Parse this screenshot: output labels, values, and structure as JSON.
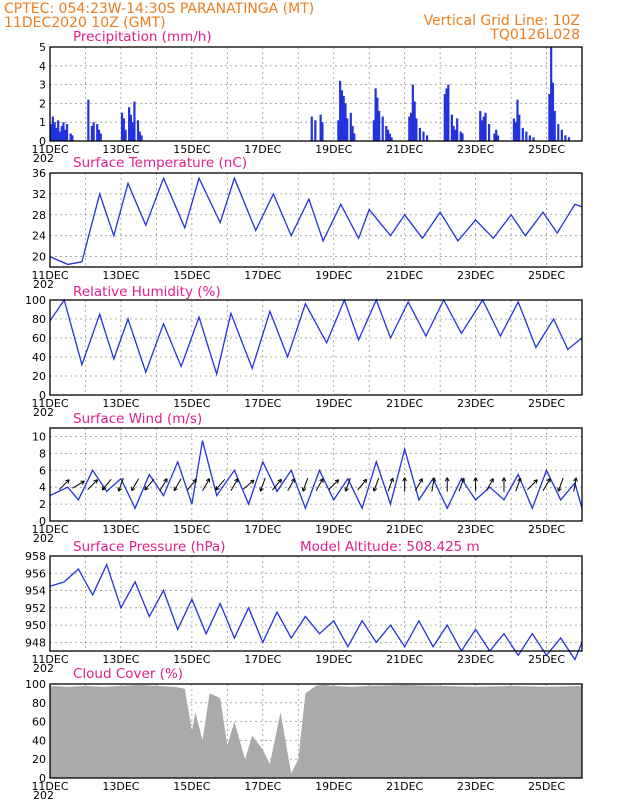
{
  "header": {
    "line1_left": "CPTEC:   054:23W-14:30S   PARANATINGA (MT)",
    "line2_left": "11DEC2020 10Z (GMT)",
    "line1_right": "Vertical Grid Line: 10Z",
    "line2_right": "TQ0126L028"
  },
  "colors": {
    "header": "#ee7d1f",
    "title": "#e0208a",
    "line": "#2233dd",
    "bars": "#2233dd",
    "cloud": "#aaaaaa"
  },
  "x_tick_labels": [
    "11DEC",
    "13DEC",
    "15DEC",
    "17DEC",
    "19DEC",
    "21DEC",
    "23DEC",
    "25DEC"
  ],
  "year_fragment": "202",
  "chart_data": [
    {
      "type": "bar",
      "title": "Precipitation (mm/h)",
      "ylim": [
        0,
        5
      ],
      "yticks": [
        0,
        1,
        2,
        3,
        4,
        5
      ],
      "x_days": [
        0.0,
        0.05,
        0.1,
        0.15,
        0.2,
        0.25,
        0.3,
        0.35,
        0.4,
        0.45,
        0.55,
        0.6,
        1.05,
        1.15,
        1.2,
        1.3,
        1.35,
        1.4,
        2.0,
        2.05,
        2.1,
        2.2,
        2.25,
        2.3,
        2.35,
        2.45,
        2.5,
        2.55,
        7.35,
        7.45,
        7.6,
        7.65,
        8.1,
        8.15,
        8.2,
        8.25,
        8.3,
        8.35,
        8.45,
        8.5,
        8.55,
        9.1,
        9.15,
        9.2,
        9.25,
        9.35,
        9.45,
        9.5,
        9.55,
        9.6,
        10.1,
        10.15,
        10.2,
        10.25,
        10.3,
        10.4,
        10.5,
        10.6,
        11.1,
        11.15,
        11.2,
        11.3,
        11.35,
        11.4,
        11.45,
        11.55,
        11.6,
        12.1,
        12.15,
        12.2,
        12.25,
        12.35,
        12.5,
        12.55,
        12.6,
        13.05,
        13.1,
        13.15,
        13.2,
        13.3,
        13.4,
        13.5,
        13.6,
        14.05,
        14.1,
        14.15,
        14.2,
        14.3,
        14.4,
        14.5,
        14.6
      ],
      "values": [
        0.9,
        1.3,
        1.0,
        0.7,
        1.1,
        0.5,
        0.8,
        1.0,
        0.6,
        0.9,
        0.4,
        0.3,
        2.2,
        0.8,
        1.0,
        0.9,
        0.6,
        0.4,
        1.5,
        1.2,
        0.6,
        1.8,
        1.4,
        1.0,
        2.1,
        1.1,
        0.5,
        0.3,
        1.3,
        1.1,
        1.4,
        1.0,
        1.1,
        3.2,
        2.7,
        2.4,
        2.0,
        1.2,
        1.5,
        0.8,
        0.4,
        1.1,
        2.8,
        2.3,
        1.6,
        1.3,
        0.8,
        0.6,
        0.4,
        0.2,
        1.3,
        1.5,
        3.0,
        2.1,
        1.2,
        0.7,
        0.5,
        0.3,
        2.5,
        2.8,
        3.0,
        1.4,
        0.8,
        0.6,
        1.2,
        0.5,
        0.4,
        1.6,
        1.1,
        1.3,
        1.5,
        0.9,
        0.4,
        0.6,
        0.3,
        1.2,
        1.0,
        2.2,
        1.4,
        0.7,
        0.5,
        0.3,
        0.2,
        2.5,
        5.0,
        3.1,
        1.6,
        0.9,
        0.6,
        0.3,
        0.2
      ]
    },
    {
      "type": "line",
      "title": "Surface Temperature (nC)",
      "ylim": [
        18,
        36
      ],
      "yticks": [
        20,
        24,
        28,
        32,
        36
      ],
      "series": [
        {
          "name": "",
          "x_days": [
            0.0,
            0.5,
            0.9,
            1.4,
            1.8,
            2.2,
            2.7,
            3.2,
            3.8,
            4.2,
            4.8,
            5.2,
            5.8,
            6.3,
            6.8,
            7.3,
            7.7,
            8.2,
            8.7,
            9.0,
            9.6,
            10.0,
            10.5,
            11.0,
            11.5,
            12.0,
            12.5,
            13.0,
            13.4,
            13.9,
            14.3,
            14.8,
            15.0
          ],
          "values": [
            20.0,
            18.5,
            19.0,
            32.0,
            24.0,
            34.0,
            26.0,
            35.0,
            25.5,
            35.0,
            26.5,
            35.0,
            25.0,
            32.0,
            24.0,
            31.0,
            23.0,
            30.0,
            23.5,
            29.0,
            24.0,
            28.0,
            23.5,
            28.5,
            23.0,
            27.0,
            23.5,
            28.0,
            24.0,
            28.5,
            24.5,
            30.0,
            29.5
          ]
        }
      ]
    },
    {
      "type": "line",
      "title": "Relative Humidity (%)",
      "ylim": [
        0,
        100
      ],
      "yticks": [
        0,
        20,
        40,
        60,
        80,
        100
      ],
      "series": [
        {
          "name": "",
          "x_days": [
            0.0,
            0.4,
            0.9,
            1.4,
            1.8,
            2.2,
            2.7,
            3.2,
            3.7,
            4.2,
            4.7,
            5.1,
            5.7,
            6.2,
            6.7,
            7.2,
            7.8,
            8.3,
            8.7,
            9.2,
            9.6,
            10.1,
            10.6,
            11.1,
            11.6,
            12.2,
            12.7,
            13.2,
            13.7,
            14.2,
            14.6,
            15.0
          ],
          "values": [
            78,
            100,
            32,
            85,
            38,
            80,
            24,
            75,
            30,
            82,
            22,
            86,
            28,
            88,
            40,
            96,
            55,
            100,
            58,
            100,
            60,
            98,
            62,
            100,
            65,
            100,
            62,
            98,
            50,
            80,
            48,
            60
          ]
        }
      ]
    },
    {
      "type": "line",
      "title": "Surface Wind (m/s)",
      "ylim": [
        0,
        11
      ],
      "yticks": [
        0,
        2,
        4,
        6,
        8,
        10
      ],
      "series": [
        {
          "name": "",
          "x_days": [
            0.0,
            0.5,
            0.8,
            1.2,
            1.6,
            2.0,
            2.4,
            2.8,
            3.2,
            3.6,
            4.0,
            4.3,
            4.7,
            5.2,
            5.6,
            6.0,
            6.4,
            6.8,
            7.2,
            7.6,
            8.0,
            8.4,
            8.8,
            9.2,
            9.6,
            10.0,
            10.4,
            10.8,
            11.2,
            11.6,
            12.0,
            12.4,
            12.8,
            13.2,
            13.6,
            14.0,
            14.4,
            14.8,
            15.0
          ],
          "values": [
            3.0,
            4.0,
            2.5,
            6.0,
            3.5,
            5.0,
            1.5,
            5.5,
            3.0,
            7.0,
            2.0,
            9.5,
            3.0,
            6.0,
            2.0,
            7.0,
            3.5,
            6.0,
            1.5,
            6.0,
            2.5,
            5.0,
            1.5,
            7.0,
            2.0,
            8.5,
            2.5,
            5.0,
            1.5,
            5.0,
            2.5,
            4.0,
            2.5,
            5.5,
            1.5,
            6.0,
            2.5,
            4.5,
            1.5
          ]
        }
      ],
      "wind_barbs": {
        "x_days": [
          0.4,
          0.8,
          1.2,
          1.6,
          2.0,
          2.4,
          2.8,
          3.2,
          3.6,
          4.0,
          4.4,
          4.8,
          5.2,
          5.6,
          6.0,
          6.4,
          6.8,
          7.2,
          7.6,
          8.0,
          8.4,
          8.8,
          9.2,
          9.6,
          10.0,
          10.4,
          10.8,
          11.2,
          11.6,
          12.0,
          12.4,
          12.8,
          13.2,
          13.6,
          14.0,
          14.4,
          14.8
        ],
        "direction_deg": [
          45,
          60,
          45,
          220,
          200,
          210,
          220,
          30,
          210,
          40,
          30,
          220,
          30,
          50,
          200,
          40,
          30,
          200,
          30,
          45,
          200,
          40,
          200,
          20,
          0,
          30,
          10,
          0,
          20,
          0,
          30,
          0,
          20,
          45,
          30,
          200,
          10
        ]
      }
    },
    {
      "type": "line",
      "title": "Surface Pressure (hPa)",
      "annotation": "Model Altitude: 508.425  m",
      "ylim": [
        947,
        958
      ],
      "yticks": [
        948,
        950,
        952,
        954,
        956,
        958
      ],
      "series": [
        {
          "name": "",
          "x_days": [
            0.0,
            0.4,
            0.8,
            1.2,
            1.6,
            2.0,
            2.4,
            2.8,
            3.2,
            3.6,
            4.0,
            4.4,
            4.8,
            5.2,
            5.6,
            6.0,
            6.4,
            6.8,
            7.2,
            7.6,
            8.0,
            8.4,
            8.8,
            9.2,
            9.6,
            10.0,
            10.4,
            10.8,
            11.2,
            11.6,
            12.0,
            12.4,
            12.8,
            13.2,
            13.6,
            14.0,
            14.4,
            14.8,
            15.0
          ],
          "values": [
            954.5,
            955.0,
            956.5,
            953.5,
            957.0,
            952.0,
            955.0,
            951.0,
            954.0,
            949.5,
            953.0,
            949.0,
            952.5,
            948.5,
            952.0,
            948.0,
            951.5,
            948.5,
            951.0,
            949.0,
            950.5,
            947.5,
            950.5,
            948.0,
            950.0,
            947.5,
            950.5,
            947.5,
            950.0,
            947.0,
            949.5,
            947.0,
            949.0,
            946.5,
            949.0,
            946.5,
            948.5,
            946.0,
            948.0
          ]
        }
      ]
    },
    {
      "type": "area",
      "title": "Cloud Cover (%)",
      "ylim": [
        0,
        100
      ],
      "yticks": [
        0,
        20,
        40,
        60,
        80,
        100
      ],
      "series": [
        {
          "name": "",
          "x_days": [
            0.0,
            0.5,
            1.0,
            1.5,
            2.0,
            2.5,
            3.0,
            3.5,
            3.8,
            4.0,
            4.1,
            4.3,
            4.5,
            4.8,
            5.0,
            5.2,
            5.5,
            5.7,
            6.0,
            6.2,
            6.5,
            6.8,
            7.0,
            7.2,
            7.5,
            7.7,
            8.0,
            8.5,
            9.0,
            10.0,
            11.0,
            12.0,
            13.0,
            14.0,
            15.0
          ],
          "values": [
            98,
            97,
            98,
            97,
            98,
            99,
            98,
            97,
            95,
            50,
            70,
            40,
            90,
            85,
            35,
            60,
            20,
            45,
            30,
            15,
            70,
            5,
            20,
            90,
            98,
            99,
            98,
            97,
            98,
            99,
            98,
            97,
            98,
            97,
            98
          ]
        }
      ]
    }
  ]
}
